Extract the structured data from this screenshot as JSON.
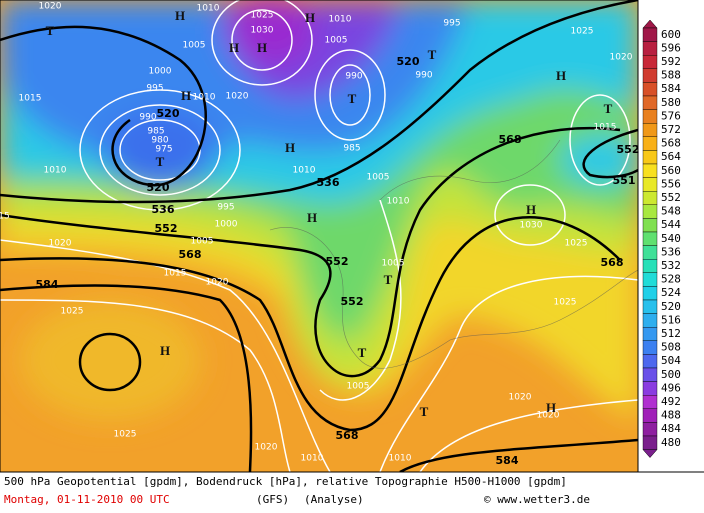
{
  "map": {
    "labels": [
      "1020",
      "T",
      "H",
      "1010",
      "1025",
      "1030",
      "H",
      "H",
      "H",
      "1010",
      "1005",
      "1005",
      "995",
      "1025",
      "1020",
      "T",
      "520",
      "990",
      "990",
      "T",
      "1000",
      "995",
      "H",
      "1010",
      "1020",
      "1015",
      "H",
      "T",
      "1015",
      "520",
      "990",
      "985",
      "980",
      "975",
      "H",
      "985",
      "568",
      "552",
      "551",
      "T",
      "1010",
      "1010",
      "536",
      "1005",
      "520",
      "536",
      "995",
      "1000",
      "552",
      "H",
      "1010",
      "H",
      "1030",
      "1025",
      "1020",
      "1005",
      "568",
      "552",
      "568",
      "1005",
      "1015",
      "1020",
      "T",
      "584",
      "552",
      "1025",
      "1025",
      "H",
      "T",
      "1005",
      "1020",
      "H",
      "1020",
      "T",
      "1025",
      "568",
      "1020",
      "1010",
      "1010",
      "584",
      "15"
    ]
  },
  "legend": {
    "levels": [
      600,
      596,
      592,
      588,
      584,
      580,
      576,
      572,
      568,
      564,
      560,
      556,
      552,
      548,
      544,
      540,
      536,
      532,
      528,
      524,
      520,
      516,
      512,
      508,
      504,
      500,
      496,
      492,
      488,
      484,
      480
    ],
    "colors": [
      "#a01848",
      "#b82040",
      "#c82838",
      "#d03c30",
      "#d85028",
      "#e06828",
      "#e88020",
      "#f09818",
      "#f8b018",
      "#f8c818",
      "#f8e020",
      "#e8e828",
      "#cce830",
      "#a8e840",
      "#80e050",
      "#60e070",
      "#40e098",
      "#28e0b8",
      "#20dcd8",
      "#20d0e8",
      "#28c0ec",
      "#2eaeee",
      "#3498f0",
      "#3c80f0",
      "#4e68ee",
      "#6a50e8",
      "#8a3ce0",
      "#b030d0",
      "#a020b8",
      "#8e1fa0",
      "#7a1f8c"
    ]
  },
  "footer": {
    "description": "500 hPa Geopotential [gpdm], Bodendruck [hPa], relative Topographie H500-H1000 [gpdm]",
    "date": "Montag, 01-11-2010  00 UTC",
    "model": "(GFS)",
    "run": "(Analyse)",
    "copyright": "© www.wetter3.de"
  }
}
